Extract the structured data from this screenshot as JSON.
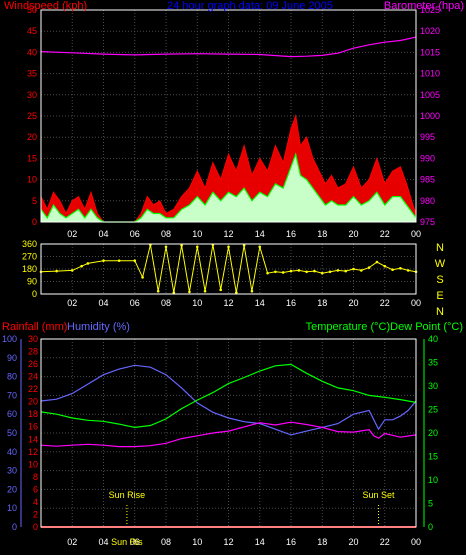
{
  "colors": {
    "background": "#000000",
    "frame": "#ffffff",
    "grid": "#4a4a4a",
    "wind_avg": "#00ff00",
    "wind_gust": "#ff0000",
    "wind_fill": "#c8ffc8",
    "barometer": "#ff00ff",
    "direction": "#ffff00",
    "rain": "#ff0000",
    "humidity": "#6666ff",
    "temperature": "#00ff00",
    "dew_point": "#ff00ff",
    "title": "#0000ff",
    "left_axis": "#ff0000",
    "bottom_axis": "#ffff00",
    "compass": "#ffff00"
  },
  "chart_data": [
    {
      "type": "line",
      "id": "wind-barometer",
      "title": "24 hour graph data: 09 June 2005",
      "left_axis_label": "Windspeed (kph)",
      "right_axis_label": "Barometer (hpa)",
      "ylim_left": [
        0,
        50
      ],
      "yticks_left": [
        "0",
        "5",
        "10",
        "15",
        "20",
        "25",
        "30",
        "35",
        "40",
        "45",
        "50"
      ],
      "ylim_right": [
        975,
        1025
      ],
      "yticks_right": [
        "975",
        "980",
        "985",
        "990",
        "995",
        "1000",
        "1005",
        "1010",
        "1015",
        "1020",
        "1025"
      ],
      "xticks": [
        "02",
        "04",
        "06",
        "08",
        "10",
        "12",
        "14",
        "16",
        "18",
        "20",
        "22",
        "00"
      ],
      "xlim_hours": [
        0,
        24
      ],
      "grid": true,
      "series": [
        {
          "name": "Barometer",
          "hours": [
            0,
            2,
            4,
            6,
            8,
            10,
            12,
            14,
            16,
            17,
            18,
            19,
            20,
            21,
            22,
            23,
            24
          ],
          "values": [
            1015.2,
            1014.9,
            1014.6,
            1014.4,
            1014.6,
            1014.7,
            1014.6,
            1014.5,
            1014.0,
            1014.1,
            1014.3,
            1014.8,
            1016.0,
            1016.8,
            1017.4,
            1017.8,
            1018.6
          ]
        },
        {
          "name": "Gust",
          "hours": [
            0,
            0.4,
            0.8,
            1.2,
            1.6,
            2,
            2.4,
            2.8,
            3.2,
            3.6,
            4,
            4.5,
            5,
            5.5,
            6,
            6.4,
            6.8,
            7.2,
            7.6,
            8,
            8.5,
            9,
            9.5,
            10,
            10.5,
            11,
            11.5,
            12,
            12.5,
            13,
            13.5,
            14,
            14.5,
            15,
            15.5,
            16,
            16.3,
            16.6,
            17,
            17.4,
            17.8,
            18.2,
            18.6,
            19,
            19.5,
            20,
            20.5,
            21,
            21.5,
            22,
            22.5,
            23,
            23.4,
            23.8,
            24
          ],
          "values": [
            6,
            3,
            7,
            5,
            2,
            5,
            6,
            3,
            7,
            2,
            0,
            0,
            0,
            0,
            0,
            2,
            6,
            4,
            5,
            2,
            3,
            6,
            8,
            12,
            8,
            14,
            10,
            16,
            12,
            18,
            11,
            15,
            12,
            18,
            14,
            22,
            25,
            18,
            20,
            15,
            12,
            9,
            11,
            8,
            9,
            13,
            8,
            10,
            15,
            9,
            12,
            13,
            9,
            4,
            2
          ]
        },
        {
          "name": "Average",
          "hours": [
            0,
            0.4,
            0.8,
            1.2,
            1.6,
            2,
            2.4,
            2.8,
            3.2,
            3.6,
            4,
            4.5,
            5,
            5.5,
            6,
            6.4,
            6.8,
            7.2,
            7.6,
            8,
            8.5,
            9,
            9.5,
            10,
            10.5,
            11,
            11.5,
            12,
            12.5,
            13,
            13.5,
            14,
            14.5,
            15,
            15.5,
            16,
            16.3,
            16.6,
            17,
            17.4,
            17.8,
            18.2,
            18.6,
            19,
            19.5,
            20,
            20.5,
            21,
            21.5,
            22,
            22.5,
            23,
            23.4,
            23.8,
            24
          ],
          "values": [
            3,
            1,
            4,
            2,
            1,
            2,
            3,
            1,
            3,
            1,
            0,
            0,
            0,
            0,
            0,
            1,
            3,
            2,
            2,
            1,
            1,
            3,
            4,
            6,
            4,
            7,
            5,
            7,
            6,
            8,
            5,
            7,
            6,
            9,
            8,
            13,
            16,
            11,
            10,
            8,
            6,
            4,
            5,
            4,
            4,
            6,
            4,
            5,
            7,
            4,
            6,
            6,
            4,
            2,
            1
          ]
        }
      ]
    },
    {
      "type": "scatter",
      "id": "wind-direction",
      "ylim": [
        0,
        360
      ],
      "yticks": [
        "0",
        "90",
        "180",
        "270",
        "360"
      ],
      "compass_labels": [
        "N",
        "W",
        "S",
        "E",
        "N"
      ],
      "xticks": [
        "02",
        "04",
        "06",
        "08",
        "10",
        "12",
        "14",
        "16",
        "18",
        "20",
        "22",
        "00"
      ],
      "xlim_hours": [
        0,
        24
      ],
      "grid": true,
      "series": [
        {
          "name": "Direction",
          "hours": [
            0,
            1,
            2,
            2.6,
            3,
            4,
            5,
            6,
            6.5,
            7,
            7.5,
            8,
            8.5,
            9,
            9.5,
            10,
            10.5,
            11,
            11.5,
            12,
            12.5,
            13,
            13.5,
            14,
            14.5,
            15,
            15.5,
            16,
            16.5,
            17,
            17.5,
            18,
            18.5,
            19,
            19.5,
            20,
            20.5,
            21,
            21.5,
            22,
            22.5,
            23,
            23.5,
            24
          ],
          "values": [
            160,
            165,
            170,
            200,
            220,
            240,
            240,
            240,
            120,
            355,
            20,
            340,
            10,
            350,
            15,
            340,
            20,
            355,
            30,
            340,
            10,
            350,
            20,
            340,
            150,
            160,
            155,
            165,
            170,
            160,
            165,
            150,
            160,
            170,
            165,
            180,
            170,
            190,
            230,
            200,
            175,
            185,
            170,
            160
          ]
        }
      ]
    },
    {
      "type": "line",
      "id": "temperature-humidity",
      "left_axis_label": "Rainfall (mm)",
      "humidity_label": "Humidity (%)",
      "right_axis_label": "Temperature (°C)Dew Point (°C)",
      "ylim_rainfall": [
        0,
        30
      ],
      "yticks_rainfall": [
        "0",
        "2",
        "4",
        "6",
        "8",
        "10",
        "12",
        "14",
        "16",
        "18",
        "20",
        "22",
        "24",
        "26",
        "28",
        "30"
      ],
      "ylim_humidity": [
        0,
        100
      ],
      "yticks_humidity": [
        "0",
        "10",
        "20",
        "30",
        "40",
        "50",
        "60",
        "70",
        "80",
        "90",
        "100"
      ],
      "ylim_temperature": [
        0,
        40
      ],
      "yticks_temperature": [
        "0",
        "5",
        "10",
        "15",
        "20",
        "25",
        "30",
        "35",
        "40"
      ],
      "xticks": [
        "02",
        "04",
        "06",
        "08",
        "10",
        "12",
        "14",
        "16",
        "18",
        "20",
        "22",
        "00"
      ],
      "xlim_hours": [
        0,
        24
      ],
      "grid": true,
      "annotations": [
        {
          "text": "Sun Rise",
          "hour": 5.5
        },
        {
          "text": "Sun Set",
          "hour": 21.6
        },
        {
          "text": "Sun Ris",
          "hour": 5.5
        }
      ],
      "series": [
        {
          "name": "Rainfall",
          "hours": [
            0,
            24
          ],
          "values": [
            0,
            0
          ]
        },
        {
          "name": "Humidity",
          "hours": [
            0,
            1,
            2,
            3,
            4,
            5,
            6,
            7,
            8,
            9,
            10,
            11,
            12,
            13,
            14,
            15,
            16,
            17,
            18,
            19,
            20,
            21,
            21.3,
            21.6,
            22,
            22.5,
            23,
            23.5,
            24
          ],
          "values": [
            67,
            68,
            71,
            76,
            81,
            84,
            86,
            85,
            81,
            74,
            66,
            61,
            58,
            56,
            55,
            52,
            49,
            51,
            53,
            55,
            60,
            62,
            57,
            52,
            57,
            57,
            59,
            62,
            67
          ]
        },
        {
          "name": "Temperature",
          "hours": [
            0,
            1,
            2,
            3,
            4,
            5,
            6,
            7,
            8,
            9,
            10,
            11,
            12,
            13,
            14,
            15,
            16,
            17,
            18,
            19,
            20,
            21,
            22,
            23,
            24
          ],
          "values": [
            24.5,
            24.0,
            23.2,
            22.7,
            22.5,
            21.9,
            21.2,
            21.6,
            23.0,
            25.2,
            27.0,
            28.6,
            30.5,
            31.8,
            33.2,
            34.3,
            34.6,
            32.7,
            31.0,
            29.6,
            29.0,
            28.0,
            27.6,
            27.1,
            26.5
          ]
        },
        {
          "name": "Dew Point",
          "hours": [
            0,
            1,
            2,
            3,
            4,
            5,
            6,
            7,
            8,
            9,
            10,
            11,
            12,
            13,
            14,
            15,
            16,
            17,
            18,
            19,
            20,
            21,
            21.3,
            21.6,
            22,
            23,
            24
          ],
          "values": [
            17.4,
            17.2,
            17.4,
            17.6,
            17.4,
            17.1,
            17.1,
            17.3,
            17.8,
            18.8,
            19.4,
            20.0,
            20.4,
            21.3,
            22.2,
            21.7,
            22.3,
            21.8,
            21.2,
            20.3,
            20.2,
            20.7,
            19.4,
            18.9,
            19.9,
            19.1,
            19.6
          ]
        }
      ]
    }
  ]
}
